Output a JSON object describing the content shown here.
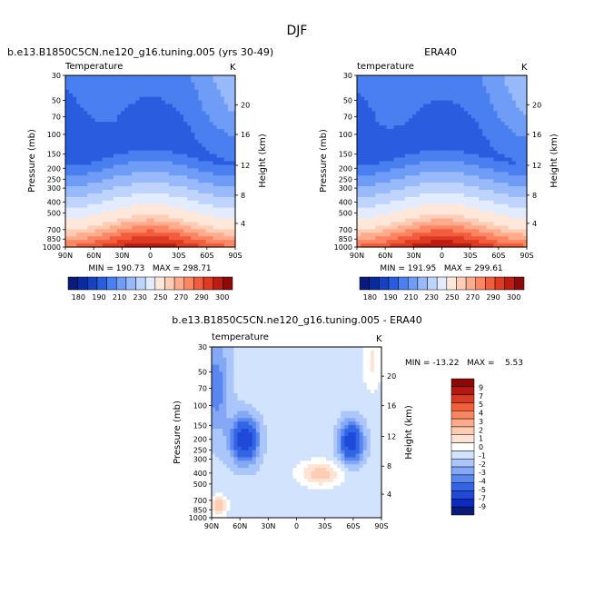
{
  "figure": {
    "title": "DJF"
  },
  "colors": {
    "temp_palette": [
      "#0a1a7a",
      "#0a2aa0",
      "#1642c2",
      "#2a5ce0",
      "#4a7ff0",
      "#6e9cf6",
      "#98b9fa",
      "#bed4fc",
      "#e2ecfe",
      "#ffe8da",
      "#ffcdb6",
      "#ffab8d",
      "#fc8663",
      "#f25e3d",
      "#df3a22",
      "#bd1c12",
      "#8c0a08"
    ],
    "diff_palette": [
      "#0a1a7a",
      "#0a2ac0",
      "#1f4ad8",
      "#3264e6",
      "#5a86f0",
      "#84a8f6",
      "#aac6fb",
      "#d2e4fd",
      "#ffffff",
      "#ffe4d4",
      "#ffcbb2",
      "#ffaa8a",
      "#fb8660",
      "#f0603c",
      "#d83a22",
      "#b4180e",
      "#8a0806"
    ]
  },
  "chart_data": [
    {
      "type": "heatmap",
      "panel": "model",
      "header": "b.e13.B1850C5CN.ne120_g16.tuning.005 (yrs 30-49)",
      "left_label": "Temperature",
      "units": "K",
      "ylabel": "Pressure (mb)",
      "y2label": "Height (km)",
      "x_ticks": [
        "90N",
        "60N",
        "30N",
        "0",
        "30S",
        "60S",
        "90S"
      ],
      "y_ticks": [
        "30",
        "50",
        "70",
        "100",
        "150",
        "200",
        "250",
        "300",
        "400",
        "500",
        "700",
        "850",
        "1000"
      ],
      "y2_ticks": [
        "20",
        "16",
        "12",
        "8",
        "4"
      ],
      "stats": "MIN = 190.73   MAX = 298.71",
      "min": 190.73,
      "max": 298.71
    },
    {
      "type": "heatmap",
      "panel": "obs",
      "header": "ERA40",
      "left_label": "temperature",
      "units": "K",
      "ylabel": "Pressure (mb)",
      "y2label": "Height (km)",
      "x_ticks": [
        "90N",
        "60N",
        "30N",
        "0",
        "30S",
        "60S",
        "90S"
      ],
      "y_ticks": [
        "30",
        "50",
        "70",
        "100",
        "150",
        "200",
        "250",
        "300",
        "400",
        "500",
        "700",
        "850",
        "1000"
      ],
      "y2_ticks": [
        "20",
        "16",
        "12",
        "8",
        "4"
      ],
      "stats": "MIN = 191.95   MAX = 299.61",
      "min": 191.95,
      "max": 299.61
    },
    {
      "type": "heatmap",
      "panel": "difference",
      "header": "b.e13.B1850C5CN.ne120_g16.tuning.005 - ERA40",
      "left_label": "temperature",
      "units": "K",
      "ylabel": "Pressure (mb)",
      "y2label": "Height (km)",
      "x_ticks": [
        "90N",
        "60N",
        "30N",
        "0",
        "30S",
        "60S",
        "90S"
      ],
      "y_ticks": [
        "30",
        "50",
        "70",
        "100",
        "150",
        "200",
        "250",
        "300",
        "400",
        "500",
        "700",
        "850",
        "1000"
      ],
      "y2_ticks": [
        "20",
        "16",
        "12",
        "8",
        "4"
      ],
      "stats": "MIN = -13.22   MAX =    5.53",
      "min": -13.22,
      "max": 5.53
    }
  ],
  "colorbars": {
    "temperature_labels": [
      "180",
      "190",
      "210",
      "230",
      "250",
      "270",
      "290",
      "300"
    ],
    "difference_labels": [
      "9",
      "7",
      "5",
      "4",
      "3",
      "2",
      "1",
      "0",
      "-1",
      "-2",
      "-3",
      "-4",
      "-5",
      "-7",
      "-9"
    ]
  }
}
